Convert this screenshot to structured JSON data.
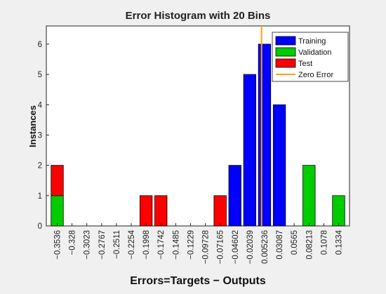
{
  "chart_data": {
    "type": "bar",
    "title": "Error Histogram with 20 Bins",
    "xlabel": "Errors=Targets − Outputs",
    "ylabel": "Instances",
    "ylim": [
      0,
      6.6
    ],
    "yticks": [
      0,
      1,
      2,
      3,
      4,
      5,
      6
    ],
    "categories": [
      "−0.3536",
      "−0.328",
      "−0.3023",
      "−0.2767",
      "−0.2511",
      "−0.2254",
      "−0.1998",
      "−0.1742",
      "−0.1485",
      "−0.1229",
      "−0.09728",
      "−0.07165",
      "−0.04602",
      "−0.02039",
      "0.005236",
      "0.03087",
      "0.0565",
      "0.08213",
      "0.1078",
      "0.1334"
    ],
    "series": [
      {
        "name": "Training",
        "color": "#0000ff",
        "values": [
          0,
          0,
          0,
          0,
          0,
          0,
          0,
          0,
          0,
          0,
          0,
          0,
          2,
          5,
          6,
          4,
          0,
          0,
          0,
          0
        ]
      },
      {
        "name": "Validation",
        "color": "#00cc00",
        "values": [
          1,
          0,
          0,
          0,
          0,
          0,
          0,
          0,
          0,
          0,
          0,
          0,
          0,
          0,
          0,
          0,
          0,
          2,
          0,
          1
        ]
      },
      {
        "name": "Test",
        "color": "#ff0000",
        "values": [
          1,
          0,
          0,
          0,
          0,
          0,
          1,
          1,
          0,
          0,
          0,
          1,
          0,
          0,
          0,
          0,
          0,
          0,
          0,
          0
        ]
      }
    ],
    "zero_error": {
      "label": "Zero Error",
      "value": 0,
      "color": "#ffa500"
    },
    "legend_position": "top-right",
    "grid": false
  }
}
